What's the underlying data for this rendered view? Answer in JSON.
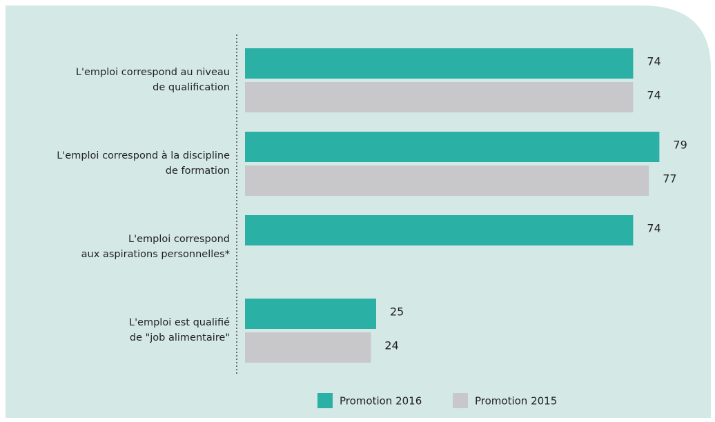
{
  "chart_data": {
    "type": "bar",
    "orientation": "horizontal",
    "categories": [
      "L'emploi correspond au niveau\nde qualification",
      "L'emploi correspond à la discipline\nde formation",
      "L'emploi correspond\naux aspirations personnelles*",
      "L'emploi est qualifié\nde \"job alimentaire\""
    ],
    "series": [
      {
        "name": "Promotion 2016",
        "color": "#2ab0a5",
        "values": [
          74,
          79,
          74,
          25
        ]
      },
      {
        "name": "Promotion 2015",
        "color": "#c8c8ca",
        "values": [
          74,
          77,
          null,
          24
        ]
      }
    ],
    "xlim": [
      0,
      100
    ]
  }
}
